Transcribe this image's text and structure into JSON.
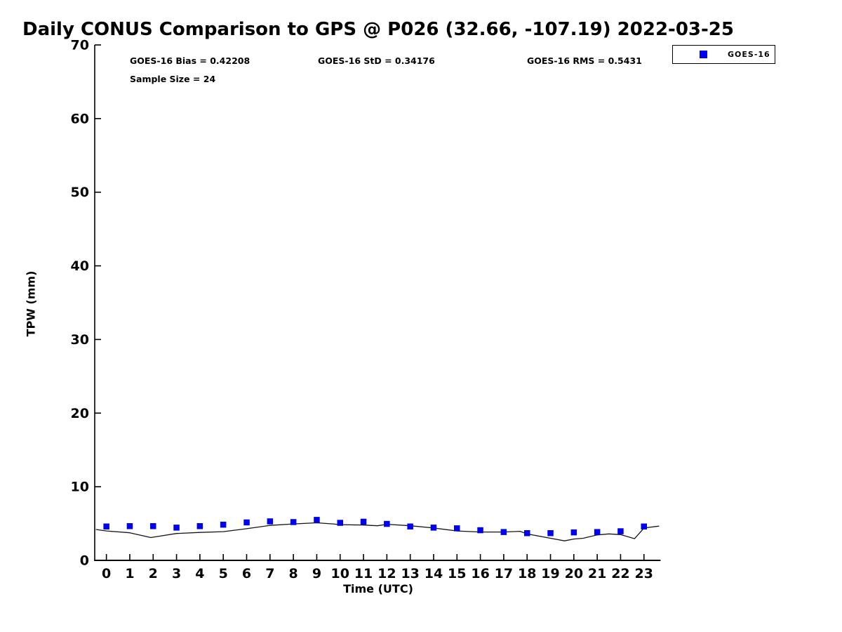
{
  "title": "Daily CONUS Comparison to GPS @ P026 (32.66, -107.19) 2022-03-25",
  "stats": {
    "bias_label": "GOES-16 Bias = 0.42208",
    "std_label": "GOES-16 StD = 0.34176",
    "rms_label": "GOES-16 RMS = 0.5431",
    "sample_label": "Sample Size = 24"
  },
  "legend": {
    "position": "top-right",
    "items": [
      {
        "label": "GOES-16",
        "marker": "filled-square",
        "color": "#0000ee"
      }
    ]
  },
  "chart_data": {
    "type": "scatter",
    "title": "Daily CONUS Comparison to GPS @ P026 (32.66, -107.19) 2022-03-25",
    "xlabel": "Time (UTC)",
    "ylabel": "TPW (mm)",
    "xlim": [
      -0.5,
      23.71
    ],
    "ylim": [
      0,
      70
    ],
    "x_ticks": [
      0,
      1,
      2,
      3,
      4,
      5,
      6,
      7,
      8,
      9,
      10,
      11,
      12,
      13,
      14,
      15,
      16,
      17,
      18,
      19,
      20,
      21,
      22,
      23
    ],
    "y_ticks": [
      0,
      10,
      20,
      30,
      40,
      50,
      60,
      70
    ],
    "grid": false,
    "tick_direction": "in",
    "legend_position": "top-right",
    "stats": {
      "goes16_bias": 0.42208,
      "goes16_std": 0.34176,
      "goes16_rms": 0.5431,
      "sample_size": 24
    },
    "series": [
      {
        "name": "GPS",
        "type": "line",
        "color": "#151515",
        "x": [
          -0.45,
          0,
          1,
          1.9,
          3,
          4,
          5,
          6,
          7,
          8,
          9,
          9.7,
          10,
          11,
          11.6,
          12,
          13,
          14,
          15,
          16,
          17,
          17.7,
          18,
          19,
          19.6,
          20,
          20.4,
          21,
          21.5,
          22,
          22.6,
          23,
          23.65
        ],
        "y": [
          4.2,
          4.0,
          3.75,
          3.1,
          3.65,
          3.8,
          3.9,
          4.3,
          4.75,
          4.95,
          5.1,
          4.95,
          4.85,
          4.8,
          4.7,
          4.9,
          4.7,
          4.4,
          4.0,
          3.85,
          3.85,
          3.95,
          3.6,
          3.0,
          2.65,
          2.9,
          3.0,
          3.45,
          3.6,
          3.5,
          2.95,
          4.4,
          4.65
        ]
      },
      {
        "name": "GOES-16",
        "type": "scatter",
        "marker": "square",
        "color": "#0000ee",
        "x": [
          0,
          1,
          2,
          3,
          4,
          5,
          6,
          7,
          8,
          9,
          10,
          11,
          12,
          13,
          14,
          15,
          16,
          17,
          18,
          19,
          20,
          21,
          22,
          23
        ],
        "y": [
          4.6,
          4.65,
          4.65,
          4.45,
          4.65,
          4.85,
          5.15,
          5.3,
          5.2,
          5.5,
          5.1,
          5.25,
          4.95,
          4.6,
          4.45,
          4.35,
          4.1,
          3.85,
          3.7,
          3.7,
          3.8,
          3.85,
          3.95,
          4.6
        ]
      }
    ]
  }
}
